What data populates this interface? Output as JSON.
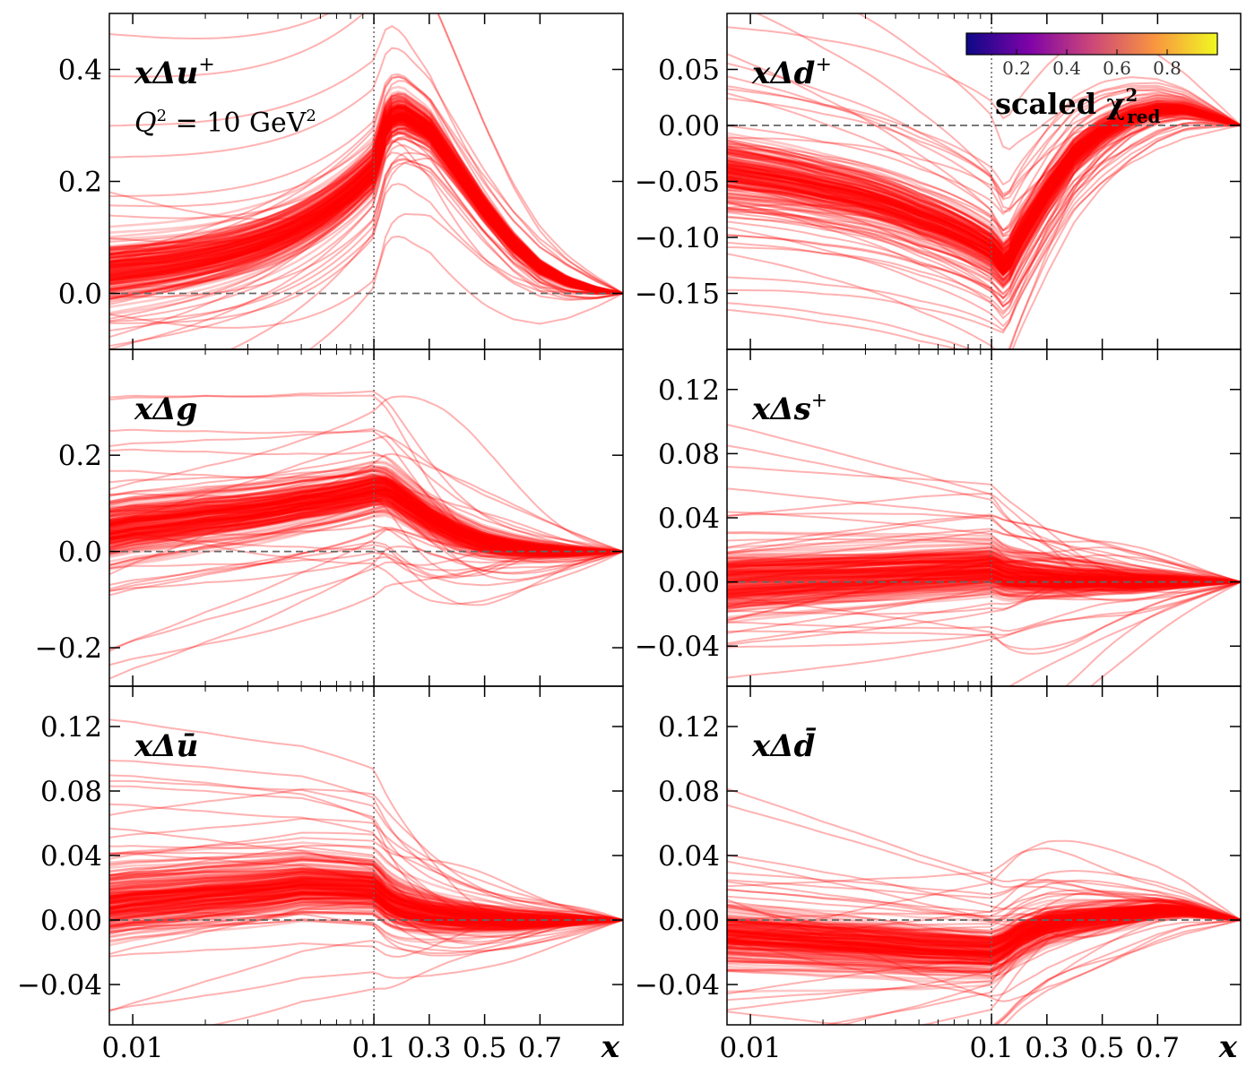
{
  "chart_data": [
    {
      "id": "u_plus",
      "type": "line",
      "label_base": "xΔu",
      "label_sup": "+",
      "annotation": {
        "q2": "Q",
        "q2_sup": "2",
        "eq": " = 10 GeV",
        "unit_sup": "2"
      },
      "ylim": [
        -0.1,
        0.5
      ],
      "yticks": [
        0.0,
        0.2,
        0.4
      ],
      "ytick_labels": [
        "0.0",
        "0.2",
        "0.4"
      ],
      "xlim": [
        0.008,
        1.0
      ],
      "xscale": "log-linear (log below 0.1, linear above)",
      "xticks": [
        0.01,
        0.1,
        0.3,
        0.5,
        0.7
      ],
      "xtick_labels": [
        "0.01",
        "0.1",
        "0.3",
        "0.5",
        "0.7"
      ],
      "xlabel": "x",
      "band_mean": {
        "x": [
          0.008,
          0.01,
          0.02,
          0.05,
          0.1,
          0.15,
          0.2,
          0.3,
          0.4,
          0.5,
          0.6,
          0.7,
          0.8,
          0.9,
          1.0
        ],
        "y": [
          0.035,
          0.04,
          0.06,
          0.12,
          0.22,
          0.31,
          0.32,
          0.29,
          0.22,
          0.15,
          0.09,
          0.045,
          0.02,
          0.007,
          0.0
        ]
      },
      "n_replicas": 200,
      "line_color": "#ff0000",
      "zero_line": true
    },
    {
      "id": "d_plus",
      "type": "line",
      "label_base": "xΔd",
      "label_sup": "+",
      "ylim": [
        -0.2,
        0.1
      ],
      "yticks": [
        -0.15,
        -0.1,
        -0.05,
        0.0,
        0.05
      ],
      "ytick_labels": [
        "−0.15",
        "−0.10",
        "−0.05",
        "0.00",
        "0.05"
      ],
      "xlim": [
        0.008,
        1.0
      ],
      "xticks": [
        0.01,
        0.1,
        0.3,
        0.5,
        0.7
      ],
      "xtick_labels": [
        "0.01",
        "0.1",
        "0.3",
        "0.5",
        "0.7"
      ],
      "xlabel": "x",
      "band_mean": {
        "x": [
          0.008,
          0.01,
          0.02,
          0.05,
          0.1,
          0.15,
          0.2,
          0.3,
          0.4,
          0.5,
          0.6,
          0.7,
          0.8,
          0.9,
          1.0
        ],
        "y": [
          -0.04,
          -0.043,
          -0.055,
          -0.08,
          -0.11,
          -0.125,
          -0.1,
          -0.06,
          -0.025,
          -0.005,
          0.008,
          0.015,
          0.015,
          0.008,
          0.0
        ]
      },
      "colorbar": {
        "title": "scaled χ",
        "title_sup": "2",
        "title_sub": "red",
        "ticks": [
          "0.2",
          "0.4",
          "0.6",
          "0.8"
        ],
        "colormap": "plasma"
      },
      "n_replicas": 200,
      "line_color": "#ff0000",
      "zero_line": true
    },
    {
      "id": "g",
      "type": "line",
      "label_base": "xΔg",
      "label_sup": "",
      "ylim": [
        -0.28,
        0.42
      ],
      "yticks": [
        -0.2,
        0.0,
        0.2
      ],
      "ytick_labels": [
        "−0.2",
        "0.0",
        "0.2"
      ],
      "xlim": [
        0.008,
        1.0
      ],
      "xticks": [
        0.01,
        0.1,
        0.3,
        0.5,
        0.7
      ],
      "xtick_labels": [
        "0.01",
        "0.1",
        "0.3",
        "0.5",
        "0.7"
      ],
      "xlabel": "x",
      "band_mean": {
        "x": [
          0.008,
          0.01,
          0.02,
          0.05,
          0.1,
          0.15,
          0.2,
          0.3,
          0.4,
          0.5,
          0.6,
          0.7,
          0.8,
          0.9,
          1.0
        ],
        "y": [
          0.04,
          0.05,
          0.07,
          0.1,
          0.13,
          0.13,
          0.11,
          0.07,
          0.04,
          0.02,
          0.01,
          0.004,
          0.001,
          0.0,
          0.0
        ]
      },
      "n_replicas": 200,
      "line_color": "#ff0000",
      "zero_line": true
    },
    {
      "id": "s_plus",
      "type": "line",
      "label_base": "xΔs",
      "label_sup": "+",
      "ylim": [
        -0.065,
        0.145
      ],
      "yticks": [
        -0.04,
        0.0,
        0.04,
        0.08,
        0.12
      ],
      "ytick_labels": [
        "−0.04",
        "0.00",
        "0.04",
        "0.08",
        "0.12"
      ],
      "xlim": [
        0.008,
        1.0
      ],
      "xticks": [
        0.01,
        0.1,
        0.3,
        0.5,
        0.7
      ],
      "xtick_labels": [
        "0.01",
        "0.1",
        "0.3",
        "0.5",
        "0.7"
      ],
      "xlabel": "x",
      "band_mean": {
        "x": [
          0.008,
          0.01,
          0.02,
          0.05,
          0.1,
          0.15,
          0.2,
          0.3,
          0.4,
          0.5,
          0.6,
          0.7,
          0.8,
          0.9,
          1.0
        ],
        "y": [
          0.0,
          0.001,
          0.003,
          0.006,
          0.008,
          0.004,
          0.003,
          0.002,
          0.001,
          0.001,
          0.0,
          0.0,
          0.0,
          0.0,
          0.0
        ]
      },
      "n_replicas": 200,
      "line_color": "#ff0000",
      "zero_line": true
    },
    {
      "id": "u_bar",
      "type": "line",
      "label_base": "xΔū",
      "label_sup": "",
      "ylim": [
        -0.065,
        0.145
      ],
      "yticks": [
        -0.04,
        0.0,
        0.04,
        0.08,
        0.12
      ],
      "ytick_labels": [
        "−0.04",
        "0.00",
        "0.04",
        "0.08",
        "0.12"
      ],
      "xlim": [
        0.008,
        1.0
      ],
      "xticks": [
        0.01,
        0.1,
        0.3,
        0.5,
        0.7
      ],
      "xtick_labels": [
        "0.01",
        "0.1",
        "0.3",
        "0.5",
        "0.7"
      ],
      "xlabel": "x",
      "band_mean": {
        "x": [
          0.008,
          0.01,
          0.02,
          0.05,
          0.1,
          0.15,
          0.2,
          0.3,
          0.4,
          0.5,
          0.6,
          0.7,
          0.8,
          0.9,
          1.0
        ],
        "y": [
          0.01,
          0.012,
          0.016,
          0.022,
          0.02,
          0.012,
          0.008,
          0.004,
          0.002,
          0.001,
          0.0,
          0.0,
          0.0,
          0.0,
          0.0
        ]
      },
      "n_replicas": 200,
      "line_color": "#ff0000",
      "zero_line": true
    },
    {
      "id": "d_bar",
      "type": "line",
      "label_base": "xΔd̄",
      "label_sup": "",
      "ylim": [
        -0.065,
        0.145
      ],
      "yticks": [
        -0.04,
        0.0,
        0.04,
        0.08,
        0.12
      ],
      "ytick_labels": [
        "−0.04",
        "0.00",
        "0.04",
        "0.08",
        "0.12"
      ],
      "xlim": [
        0.008,
        1.0
      ],
      "xticks": [
        0.01,
        0.1,
        0.3,
        0.5,
        0.7
      ],
      "xtick_labels": [
        "0.01",
        "0.1",
        "0.3",
        "0.5",
        "0.7"
      ],
      "xlabel": "x",
      "band_mean": {
        "x": [
          0.008,
          0.01,
          0.02,
          0.05,
          0.1,
          0.15,
          0.2,
          0.3,
          0.4,
          0.5,
          0.6,
          0.7,
          0.8,
          0.9,
          1.0
        ],
        "y": [
          -0.01,
          -0.011,
          -0.014,
          -0.018,
          -0.02,
          -0.016,
          -0.01,
          -0.003,
          0.0,
          0.002,
          0.004,
          0.006,
          0.006,
          0.003,
          0.0
        ]
      },
      "n_replicas": 200,
      "line_color": "#ff0000",
      "zero_line": true
    }
  ]
}
